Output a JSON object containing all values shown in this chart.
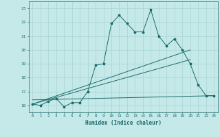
{
  "xlabel": "Humidex (Indice chaleur)",
  "bg_color": "#c5e8e8",
  "line_color": "#1a6b6b",
  "grid_color": "#a8d4d4",
  "xlim": [
    -0.5,
    23.5
  ],
  "ylim": [
    15.5,
    23.5
  ],
  "xticks": [
    0,
    1,
    2,
    3,
    4,
    5,
    6,
    7,
    8,
    9,
    10,
    11,
    12,
    13,
    14,
    15,
    16,
    17,
    18,
    19,
    20,
    21,
    22,
    23
  ],
  "yticks": [
    16,
    17,
    18,
    19,
    20,
    21,
    22,
    23
  ],
  "series1_x": [
    0,
    1,
    2,
    3,
    4,
    5,
    6,
    7,
    8,
    9,
    10,
    11,
    12,
    13,
    14,
    15,
    16,
    17,
    18,
    19,
    20,
    21,
    22,
    23
  ],
  "series1_y": [
    16.1,
    16.0,
    16.3,
    16.5,
    15.9,
    16.2,
    16.2,
    17.0,
    18.9,
    19.0,
    21.9,
    22.5,
    21.9,
    21.3,
    21.3,
    22.9,
    21.0,
    20.3,
    20.8,
    20.0,
    19.0,
    17.5,
    16.7,
    16.7
  ],
  "series2_x": [
    0,
    20
  ],
  "series2_y": [
    16.1,
    20.0
  ],
  "series3_x": [
    0,
    20
  ],
  "series3_y": [
    16.1,
    19.3
  ],
  "series4_x": [
    0,
    23
  ],
  "series4_y": [
    16.4,
    16.7
  ]
}
